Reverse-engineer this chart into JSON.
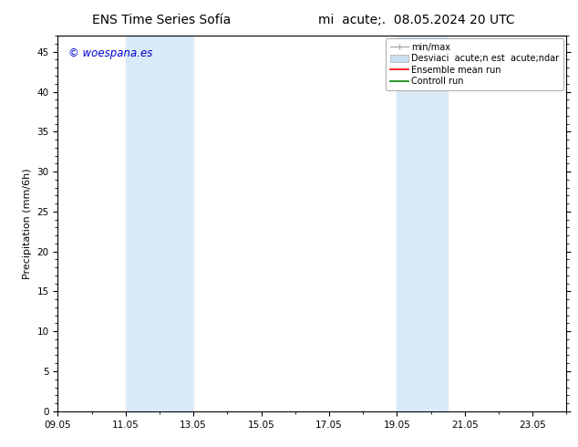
{
  "title_left": "ENS Time Series Sofía",
  "title_right": "mi  acute;.  08.05.2024 20 UTC",
  "ylabel": "Precipitation (mm/6h)",
  "watermark": "© woespana.es",
  "ylim": [
    0,
    47
  ],
  "yticks": [
    0,
    5,
    10,
    15,
    20,
    25,
    30,
    35,
    40,
    45
  ],
  "xlim": [
    0,
    15
  ],
  "xtick_labels": [
    "09.05",
    "11.05",
    "13.05",
    "15.05",
    "17.05",
    "19.05",
    "21.05",
    "23.05"
  ],
  "xtick_positions": [
    0,
    2,
    4,
    6,
    8,
    10,
    12,
    14
  ],
  "shade_bands": [
    {
      "x_start": 2,
      "x_end": 4,
      "color": "#daeaf7"
    },
    {
      "x_start": 10,
      "x_end": 11.5,
      "color": "#daeaf7"
    }
  ],
  "legend_line1_label": "min/max",
  "legend_line1_color": "#aaaaaa",
  "legend_box_label": "Desviaci  acute;n est  acute;ndar",
  "legend_box_color": "#c8dff0",
  "legend_box_edge": "#aaaaaa",
  "legend_red_label": "Ensemble mean run",
  "legend_red_color": "#ff0000",
  "legend_green_label": "Controll run",
  "legend_green_color": "#008000",
  "background_color": "#ffffff",
  "border_color": "#000000",
  "watermark_color": "#0000cc",
  "title_fontsize": 10,
  "axis_fontsize": 8,
  "tick_fontsize": 7.5,
  "legend_fontsize": 7
}
